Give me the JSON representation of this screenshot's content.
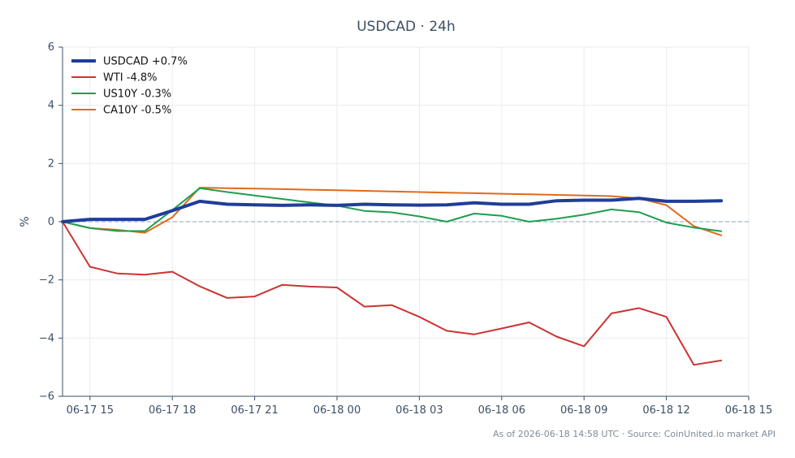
{
  "chart_data": {
    "type": "line",
    "title": "USDCAD · 24h",
    "xlabel": "",
    "ylabel": "%",
    "ylim": [
      -6,
      6
    ],
    "yticks": [
      -6,
      -4,
      -2,
      0,
      2,
      4,
      6
    ],
    "yticklabels": [
      "−6",
      "−4",
      "−2",
      "0",
      "2",
      "4",
      "6"
    ],
    "xlim": [
      "06-17 14:00",
      "06-18 15:00"
    ],
    "xticks": [
      "06-17 15:00",
      "06-17 18:00",
      "06-17 21:00",
      "06-18 00:00",
      "06-18 03:00",
      "06-18 06:00",
      "06-18 09:00",
      "06-18 12:00",
      "06-18 15:00"
    ],
    "xticklabels": [
      "06-17 15",
      "06-17 18",
      "06-17 21",
      "06-18 00",
      "06-18 03",
      "06-18 06",
      "06-18 09",
      "06-18 12",
      "06-18 15"
    ],
    "x": [
      "06-17 14:00",
      "06-17 15:00",
      "06-17 16:00",
      "06-17 17:00",
      "06-17 18:00",
      "06-17 19:00",
      "06-17 20:00",
      "06-17 21:00",
      "06-17 22:00",
      "06-17 23:00",
      "06-18 00:00",
      "06-18 01:00",
      "06-18 02:00",
      "06-18 03:00",
      "06-18 04:00",
      "06-18 05:00",
      "06-18 06:00",
      "06-18 07:00",
      "06-18 08:00",
      "06-18 09:00",
      "06-18 10:00",
      "06-18 11:00",
      "06-18 12:00",
      "06-18 13:00",
      "06-18 14:00"
    ],
    "zero_line": {
      "value": 0,
      "style": "dashed",
      "color": "#8ea3bb"
    },
    "grid": true,
    "legend": "top-left",
    "series": [
      {
        "name": "USDCAD +0.7%",
        "color": "#1f3d99",
        "width": 4,
        "values": [
          0.0,
          0.08,
          0.08,
          0.08,
          0.38,
          0.7,
          0.6,
          0.58,
          0.56,
          0.58,
          0.56,
          0.6,
          0.58,
          0.57,
          0.58,
          0.65,
          0.6,
          0.6,
          0.72,
          0.74,
          0.74,
          0.8,
          0.7,
          0.7,
          0.72
        ]
      },
      {
        "name": "WTI -4.8%",
        "color": "#cc3333",
        "width": 2,
        "values": [
          0.0,
          -1.55,
          -1.78,
          -1.82,
          -1.72,
          -2.22,
          -2.62,
          -2.57,
          -2.17,
          -2.23,
          -2.26,
          -2.92,
          -2.87,
          -3.27,
          -3.75,
          -3.87,
          -3.67,
          -3.46,
          -3.95,
          -4.28,
          -3.15,
          -2.97,
          -3.27,
          -4.92,
          -4.77
        ]
      },
      {
        "name": "US10Y -0.3%",
        "color": "#1e9e4e",
        "width": 2,
        "values": [
          0.0,
          -0.22,
          -0.32,
          -0.32,
          0.4,
          1.15,
          1.02,
          0.9,
          0.78,
          0.66,
          0.55,
          0.37,
          0.32,
          0.18,
          0.0,
          0.28,
          0.2,
          0.0,
          0.1,
          0.24,
          0.42,
          0.33,
          -0.03,
          -0.2,
          -0.33
        ]
      },
      {
        "name": "CA10Y -0.5%",
        "color": "#e06a1c",
        "width": 2,
        "values": [
          0.0,
          -0.22,
          -0.28,
          -0.38,
          0.15,
          1.17,
          1.15,
          1.14,
          1.12,
          1.1,
          1.08,
          1.06,
          1.04,
          1.02,
          1.0,
          0.98,
          0.96,
          0.94,
          0.92,
          0.9,
          0.88,
          0.8,
          0.57,
          -0.15,
          -0.47
        ]
      }
    ],
    "footnote": "As of 2026-06-18 14:58 UTC · Source: CoinUnited.io market API"
  }
}
